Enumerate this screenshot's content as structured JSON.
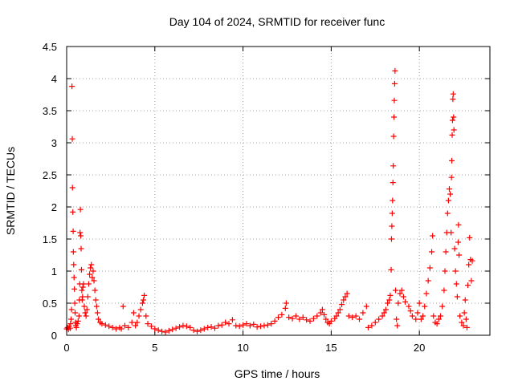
{
  "chart_data": {
    "type": "scatter",
    "title": "Day 104 of 2024, SRMTID for receiver func",
    "xlabel": "GPS time / hours",
    "ylabel": "SRMTID / TECUs",
    "xlim": [
      0,
      24
    ],
    "ylim": [
      0,
      4.5
    ],
    "grid": true,
    "marker": "+",
    "color": "#ff0000",
    "x_ticks": [
      {
        "value": 0,
        "label": "0"
      },
      {
        "value": 5,
        "label": "5"
      },
      {
        "value": 10,
        "label": "10"
      },
      {
        "value": 15,
        "label": "15"
      },
      {
        "value": 20,
        "label": "20"
      }
    ],
    "y_ticks": [
      {
        "value": 0,
        "label": "0"
      },
      {
        "value": 0.5,
        "label": "0.5"
      },
      {
        "value": 1,
        "label": "1"
      },
      {
        "value": 1.5,
        "label": "1.5"
      },
      {
        "value": 2,
        "label": "2"
      },
      {
        "value": 2.5,
        "label": "2.5"
      },
      {
        "value": 3,
        "label": "3"
      },
      {
        "value": 3.5,
        "label": "3.5"
      },
      {
        "value": 4,
        "label": "4"
      },
      {
        "value": 4.5,
        "label": "4.5"
      }
    ],
    "series": [
      {
        "name": "SRMTID",
        "points": [
          [
            0.0,
            0.1
          ],
          [
            0.05,
            0.12
          ],
          [
            0.1,
            0.09
          ],
          [
            0.15,
            0.14
          ],
          [
            0.2,
            0.11
          ],
          [
            0.22,
            0.18
          ],
          [
            0.25,
            0.25
          ],
          [
            0.28,
            0.4
          ],
          [
            0.3,
            3.88
          ],
          [
            0.32,
            3.06
          ],
          [
            0.33,
            2.3
          ],
          [
            0.35,
            1.92
          ],
          [
            0.37,
            1.62
          ],
          [
            0.38,
            1.3
          ],
          [
            0.4,
            1.1
          ],
          [
            0.42,
            0.9
          ],
          [
            0.44,
            0.72
          ],
          [
            0.46,
            0.5
          ],
          [
            0.48,
            0.35
          ],
          [
            0.5,
            0.2
          ],
          [
            0.52,
            0.15
          ],
          [
            0.55,
            0.12
          ],
          [
            0.6,
            0.18
          ],
          [
            0.65,
            0.22
          ],
          [
            0.7,
            0.3
          ],
          [
            0.72,
            0.55
          ],
          [
            0.74,
            0.8
          ],
          [
            0.76,
            1.6
          ],
          [
            0.78,
            1.96
          ],
          [
            0.8,
            1.55
          ],
          [
            0.82,
            1.35
          ],
          [
            0.84,
            1.02
          ],
          [
            0.86,
            0.7
          ],
          [
            0.88,
            0.55
          ],
          [
            0.9,
            0.6
          ],
          [
            0.92,
            0.75
          ],
          [
            0.95,
            0.8
          ],
          [
            1.0,
            0.45
          ],
          [
            1.05,
            0.35
          ],
          [
            1.1,
            0.3
          ],
          [
            1.15,
            0.4
          ],
          [
            1.2,
            0.6
          ],
          [
            1.25,
            0.8
          ],
          [
            1.3,
            0.95
          ],
          [
            1.35,
            1.05
          ],
          [
            1.4,
            1.1
          ],
          [
            1.45,
            0.9
          ],
          [
            1.5,
            1.0
          ],
          [
            1.55,
            0.85
          ],
          [
            1.6,
            0.7
          ],
          [
            1.65,
            0.55
          ],
          [
            1.7,
            0.45
          ],
          [
            1.75,
            0.35
          ],
          [
            1.8,
            0.25
          ],
          [
            1.9,
            0.2
          ],
          [
            2.0,
            0.18
          ],
          [
            2.2,
            0.16
          ],
          [
            2.4,
            0.14
          ],
          [
            2.6,
            0.12
          ],
          [
            2.8,
            0.1
          ],
          [
            3.0,
            0.12
          ],
          [
            3.1,
            0.1
          ],
          [
            3.2,
            0.45
          ],
          [
            3.3,
            0.15
          ],
          [
            3.5,
            0.12
          ],
          [
            3.7,
            0.2
          ],
          [
            3.8,
            0.35
          ],
          [
            3.9,
            0.15
          ],
          [
            4.0,
            0.2
          ],
          [
            4.1,
            0.3
          ],
          [
            4.2,
            0.4
          ],
          [
            4.3,
            0.5
          ],
          [
            4.35,
            0.55
          ],
          [
            4.4,
            0.62
          ],
          [
            4.5,
            0.3
          ],
          [
            4.6,
            0.18
          ],
          [
            4.8,
            0.14
          ],
          [
            5.0,
            0.1
          ],
          [
            5.2,
            0.08
          ],
          [
            5.4,
            0.06
          ],
          [
            5.6,
            0.05
          ],
          [
            5.8,
            0.07
          ],
          [
            6.0,
            0.09
          ],
          [
            6.2,
            0.11
          ],
          [
            6.4,
            0.13
          ],
          [
            6.6,
            0.15
          ],
          [
            6.8,
            0.14
          ],
          [
            7.0,
            0.12
          ],
          [
            7.2,
            0.08
          ],
          [
            7.4,
            0.06
          ],
          [
            7.6,
            0.08
          ],
          [
            7.8,
            0.1
          ],
          [
            8.0,
            0.12
          ],
          [
            8.2,
            0.13
          ],
          [
            8.4,
            0.11
          ],
          [
            8.6,
            0.15
          ],
          [
            8.8,
            0.16
          ],
          [
            9.0,
            0.2
          ],
          [
            9.2,
            0.18
          ],
          [
            9.4,
            0.24
          ],
          [
            9.6,
            0.15
          ],
          [
            9.8,
            0.14
          ],
          [
            10.0,
            0.16
          ],
          [
            10.2,
            0.18
          ],
          [
            10.4,
            0.15
          ],
          [
            10.6,
            0.17
          ],
          [
            10.8,
            0.13
          ],
          [
            11.0,
            0.14
          ],
          [
            11.2,
            0.15
          ],
          [
            11.4,
            0.16
          ],
          [
            11.6,
            0.18
          ],
          [
            11.8,
            0.22
          ],
          [
            12.0,
            0.28
          ],
          [
            12.2,
            0.32
          ],
          [
            12.4,
            0.42
          ],
          [
            12.45,
            0.5
          ],
          [
            12.6,
            0.28
          ],
          [
            12.8,
            0.26
          ],
          [
            13.0,
            0.3
          ],
          [
            13.2,
            0.25
          ],
          [
            13.4,
            0.28
          ],
          [
            13.6,
            0.24
          ],
          [
            13.8,
            0.22
          ],
          [
            14.0,
            0.26
          ],
          [
            14.2,
            0.3
          ],
          [
            14.4,
            0.35
          ],
          [
            14.5,
            0.4
          ],
          [
            14.6,
            0.32
          ],
          [
            14.7,
            0.25
          ],
          [
            14.8,
            0.2
          ],
          [
            14.9,
            0.18
          ],
          [
            15.0,
            0.22
          ],
          [
            15.2,
            0.26
          ],
          [
            15.3,
            0.3
          ],
          [
            15.4,
            0.35
          ],
          [
            15.5,
            0.4
          ],
          [
            15.6,
            0.48
          ],
          [
            15.7,
            0.55
          ],
          [
            15.8,
            0.6
          ],
          [
            15.9,
            0.65
          ],
          [
            16.0,
            0.3
          ],
          [
            16.2,
            0.28
          ],
          [
            16.4,
            0.3
          ],
          [
            16.6,
            0.25
          ],
          [
            16.8,
            0.35
          ],
          [
            17.0,
            0.45
          ],
          [
            17.1,
            0.12
          ],
          [
            17.3,
            0.15
          ],
          [
            17.5,
            0.2
          ],
          [
            17.7,
            0.25
          ],
          [
            17.9,
            0.3
          ],
          [
            18.0,
            0.35
          ],
          [
            18.1,
            0.4
          ],
          [
            18.2,
            0.5
          ],
          [
            18.3,
            0.55
          ],
          [
            18.35,
            0.62
          ],
          [
            18.4,
            1.02
          ],
          [
            18.42,
            1.5
          ],
          [
            18.44,
            1.7
          ],
          [
            18.46,
            1.9
          ],
          [
            18.48,
            2.1
          ],
          [
            18.5,
            2.38
          ],
          [
            18.52,
            2.64
          ],
          [
            18.54,
            3.1
          ],
          [
            18.56,
            3.4
          ],
          [
            18.58,
            3.66
          ],
          [
            18.6,
            3.92
          ],
          [
            18.62,
            4.12
          ],
          [
            18.65,
            0.7
          ],
          [
            18.7,
            0.25
          ],
          [
            18.75,
            0.15
          ],
          [
            18.8,
            0.5
          ],
          [
            18.9,
            0.65
          ],
          [
            19.0,
            0.7
          ],
          [
            19.1,
            0.6
          ],
          [
            19.2,
            0.52
          ],
          [
            19.4,
            0.45
          ],
          [
            19.5,
            0.38
          ],
          [
            19.6,
            0.3
          ],
          [
            19.8,
            0.25
          ],
          [
            19.9,
            0.35
          ],
          [
            20.0,
            0.5
          ],
          [
            20.1,
            0.25
          ],
          [
            20.2,
            0.3
          ],
          [
            20.3,
            0.45
          ],
          [
            20.4,
            0.65
          ],
          [
            20.5,
            0.85
          ],
          [
            20.6,
            1.05
          ],
          [
            20.7,
            1.3
          ],
          [
            20.75,
            1.55
          ],
          [
            20.8,
            0.3
          ],
          [
            20.9,
            0.2
          ],
          [
            21.0,
            0.18
          ],
          [
            21.1,
            0.25
          ],
          [
            21.2,
            0.3
          ],
          [
            21.3,
            0.45
          ],
          [
            21.4,
            0.7
          ],
          [
            21.45,
            1.0
          ],
          [
            21.5,
            1.3
          ],
          [
            21.55,
            1.6
          ],
          [
            21.6,
            1.9
          ],
          [
            21.65,
            2.1
          ],
          [
            21.7,
            2.28
          ],
          [
            21.75,
            2.2
          ],
          [
            21.8,
            1.6
          ],
          [
            21.82,
            2.46
          ],
          [
            21.84,
            2.72
          ],
          [
            21.86,
            3.12
          ],
          [
            21.88,
            3.35
          ],
          [
            21.9,
            3.68
          ],
          [
            21.92,
            3.76
          ],
          [
            21.94,
            3.4
          ],
          [
            21.96,
            3.2
          ],
          [
            22.0,
            1.35
          ],
          [
            22.05,
            1.0
          ],
          [
            22.1,
            0.8
          ],
          [
            22.15,
            0.6
          ],
          [
            22.2,
            1.45
          ],
          [
            22.22,
            1.72
          ],
          [
            22.25,
            1.25
          ],
          [
            22.3,
            0.3
          ],
          [
            22.4,
            0.2
          ],
          [
            22.5,
            0.15
          ],
          [
            22.55,
            0.35
          ],
          [
            22.6,
            0.55
          ],
          [
            22.65,
            0.25
          ],
          [
            22.7,
            0.12
          ],
          [
            22.75,
            0.78
          ],
          [
            22.8,
            1.1
          ],
          [
            22.85,
            1.52
          ],
          [
            22.9,
            1.18
          ],
          [
            22.95,
            0.85
          ],
          [
            23.0,
            1.16
          ]
        ]
      }
    ]
  }
}
